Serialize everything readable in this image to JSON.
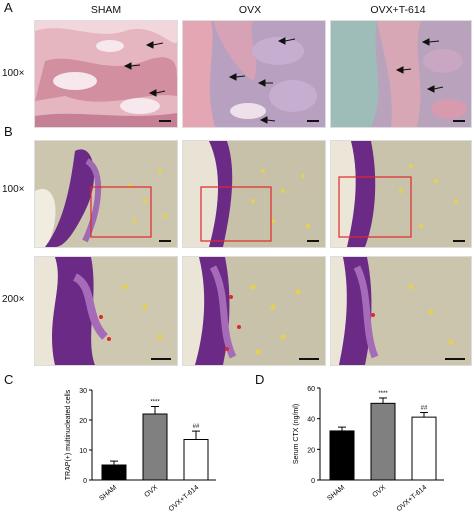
{
  "panels": {
    "A": "A",
    "B": "B",
    "C": "C",
    "D": "D"
  },
  "columns": [
    "SHAM",
    "OVX",
    "OVX+T-614"
  ],
  "row_labels": {
    "a_row": "100×",
    "b_row1": "100×",
    "b_row2": "200×"
  },
  "colors": {
    "he_stain_pink": "#d89aa8",
    "he_stain_lilac": "#b79ab8",
    "trap_purple": "#6b2a86",
    "trap_background": "#c9c3a8",
    "roi_box": "#e0282c",
    "scale_bar": "#111111",
    "bar_sham": "#000000",
    "bar_ovx": "#808080",
    "bar_t614": "#ffffff"
  },
  "chart_data": [
    {
      "type": "bar",
      "panel": "C",
      "categories": [
        "SHAM",
        "OVX",
        "OVX+T-614"
      ],
      "values": [
        5,
        22,
        13.5
      ],
      "errors": [
        1.3,
        2.5,
        2.8
      ],
      "significance": [
        "",
        "****",
        "##"
      ],
      "ylabel": "TRAP(+) multinucleated cells",
      "xlabel": "",
      "title": "",
      "ylim": [
        0,
        30
      ],
      "yticks": [
        0,
        10,
        20,
        30
      ]
    },
    {
      "type": "bar",
      "panel": "D",
      "categories": [
        "SHAM",
        "OVX",
        "OVX+T-614"
      ],
      "values": [
        32,
        50,
        41
      ],
      "errors": [
        2.5,
        3.5,
        3
      ],
      "significance": [
        "",
        "****",
        "##"
      ],
      "ylabel": "Serum CTX (ng/ml)",
      "xlabel": "",
      "title": "",
      "ylim": [
        0,
        60
      ],
      "yticks": [
        0,
        20,
        40,
        60
      ]
    }
  ]
}
